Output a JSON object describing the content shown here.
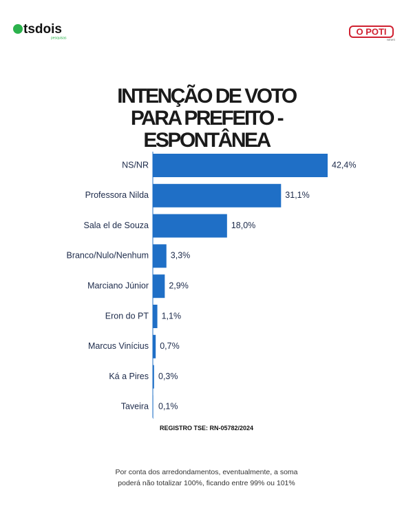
{
  "header": {
    "left_logo": "tsdois",
    "left_logo_sub": "pesquisas",
    "right_logo": "O POTI",
    "right_logo_sub": "NEWS"
  },
  "chart_data": {
    "type": "bar",
    "orientation": "horizontal",
    "title": "INTENÇÃO DE VOTO PARA PREFEITO - ESPONTÂNEA",
    "categories": [
      "NS/NR",
      "Professora Nilda",
      "Sala el de Souza",
      "Branco/Nulo/Nenhum",
      "Marciano Júnior",
      "Eron do PT",
      "Marcus Vinícius",
      "Ká a Pires",
      "Taveira"
    ],
    "values": [
      42.4,
      31.1,
      18.0,
      3.3,
      2.9,
      1.1,
      0.7,
      0.3,
      0.1
    ],
    "value_labels": [
      "42,4%",
      "31,1%",
      "18,0%",
      "3,3%",
      "2,9%",
      "1,1%",
      "0,7%",
      "0,3%",
      "0,1%"
    ],
    "color": "#1f6fc6"
  },
  "notes": {
    "registry": "REGISTRO TSE: RN-05782/2024",
    "footnote": "Por conta dos arredondamentos, eventualmente, a soma poderá não totalizar 100%, ficando entre 99% ou 101%"
  }
}
